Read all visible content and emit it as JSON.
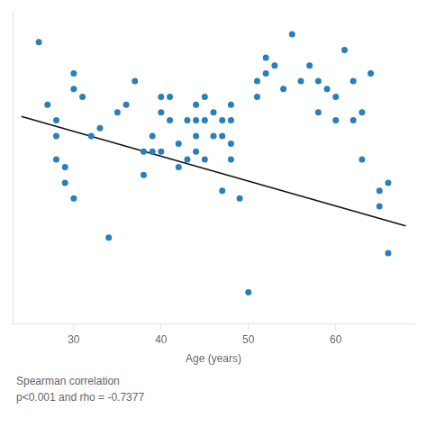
{
  "chart_data": {
    "type": "scatter",
    "xlabel": "Age (years)",
    "annotations": [
      "Spearman correlation",
      "p<0.001 and rho = -0.7377"
    ],
    "xlim": [
      23,
      69
    ],
    "xticks": [
      30,
      40,
      50,
      60
    ],
    "ylim": [
      18,
      58
    ],
    "tick_labels": "x",
    "grid": false,
    "series": [
      {
        "type": "scatter",
        "color": "#2980b9",
        "marker": "circle",
        "x": [
          26,
          27,
          28,
          28,
          28,
          29,
          29,
          30,
          30,
          30,
          31,
          32,
          33,
          34,
          35,
          36,
          37,
          38,
          38,
          39,
          39,
          40,
          40,
          40,
          41,
          41,
          42,
          42,
          43,
          43,
          44,
          44,
          44,
          44,
          45,
          45,
          45,
          46,
          46,
          47,
          47,
          47,
          48,
          48,
          48,
          48,
          49,
          50,
          51,
          51,
          52,
          52,
          53,
          54,
          55,
          56,
          57,
          58,
          58,
          59,
          60,
          60,
          61,
          62,
          62,
          63,
          63,
          64,
          65,
          65,
          66,
          66
        ],
        "values": [
          54,
          46,
          44,
          42,
          39,
          38,
          36,
          50,
          48,
          34,
          47,
          42,
          43,
          29,
          45,
          46,
          49,
          40,
          37,
          42,
          40,
          47,
          45,
          40,
          47,
          44,
          41,
          38,
          44,
          39,
          46,
          44,
          42,
          40,
          47,
          44,
          39,
          45,
          42,
          44,
          42,
          35,
          46,
          44,
          41,
          39,
          34,
          22,
          49,
          47,
          52,
          50,
          51,
          48,
          55,
          49,
          51,
          49,
          45,
          48,
          47,
          44,
          53,
          49,
          44,
          45,
          39,
          50,
          35,
          33,
          36,
          27
        ]
      },
      {
        "type": "line",
        "color": "#111111",
        "line_style": "solid",
        "x": [
          24,
          68
        ],
        "values": [
          44.5,
          30.5
        ]
      }
    ]
  }
}
